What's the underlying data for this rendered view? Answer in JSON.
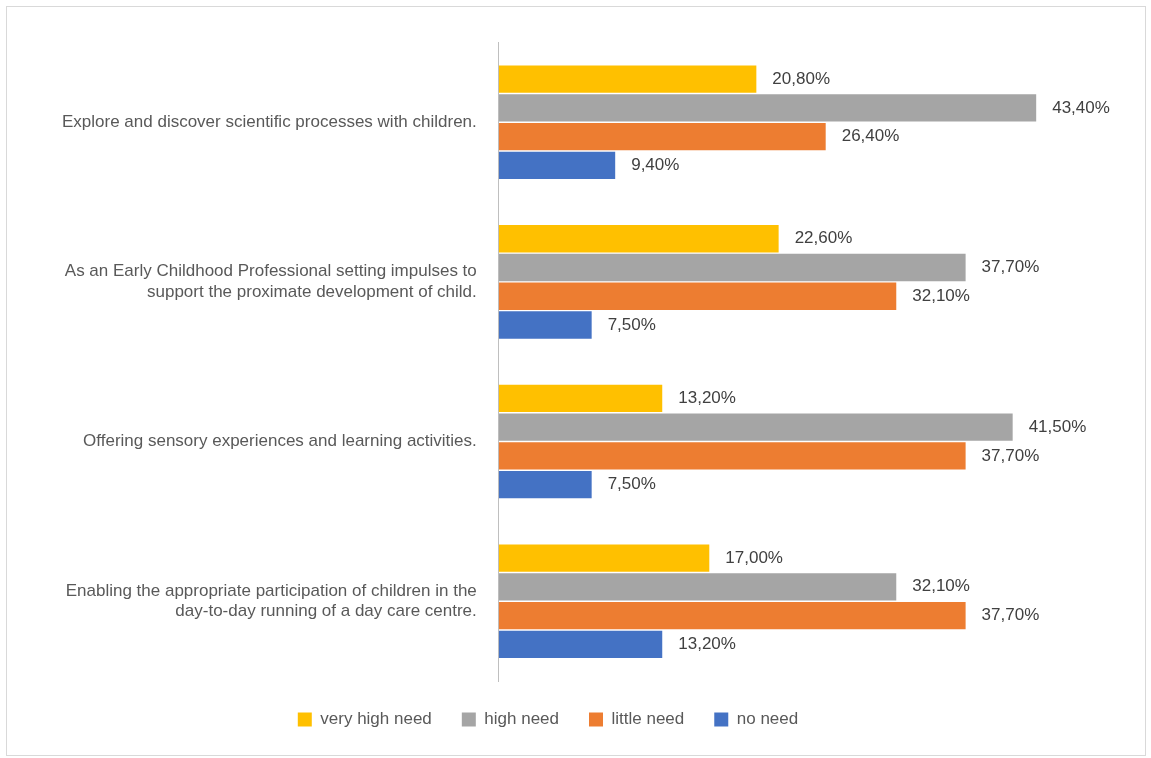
{
  "chart_data": {
    "type": "bar",
    "orientation": "horizontal",
    "grid": false,
    "legend": "bottom",
    "categories": [
      "Explore and discover scientific processes with children.",
      "As an Early Childhood Professional setting impulses to support the proximate development of child.",
      "Offering sensory experiences and learning activities.",
      "Enabling the appropriate participation of children in the day-to-day running of a day care centre."
    ],
    "series": [
      {
        "name": "very high need",
        "color": "#ffc000",
        "values": [
          20.8,
          22.6,
          13.2,
          17.0
        ],
        "value_labels": [
          "20,80%",
          "22,60%",
          "13,20%",
          "17,00%"
        ]
      },
      {
        "name": "high need",
        "color": "#a5a5a5",
        "values": [
          43.4,
          37.7,
          41.5,
          32.1
        ],
        "value_labels": [
          "43,40%",
          "37,70%",
          "41,50%",
          "32,10%"
        ]
      },
      {
        "name": "little need",
        "color": "#ed7d31",
        "values": [
          26.4,
          32.1,
          37.7,
          37.7
        ],
        "value_labels": [
          "26,40%",
          "32,10%",
          "37,70%",
          "37,70%"
        ]
      },
      {
        "name": "no need",
        "color": "#4472c4",
        "values": [
          9.4,
          7.5,
          7.5,
          13.2
        ],
        "value_labels": [
          "9,40%",
          "7,50%",
          "7,50%",
          "13,20%"
        ]
      }
    ]
  }
}
